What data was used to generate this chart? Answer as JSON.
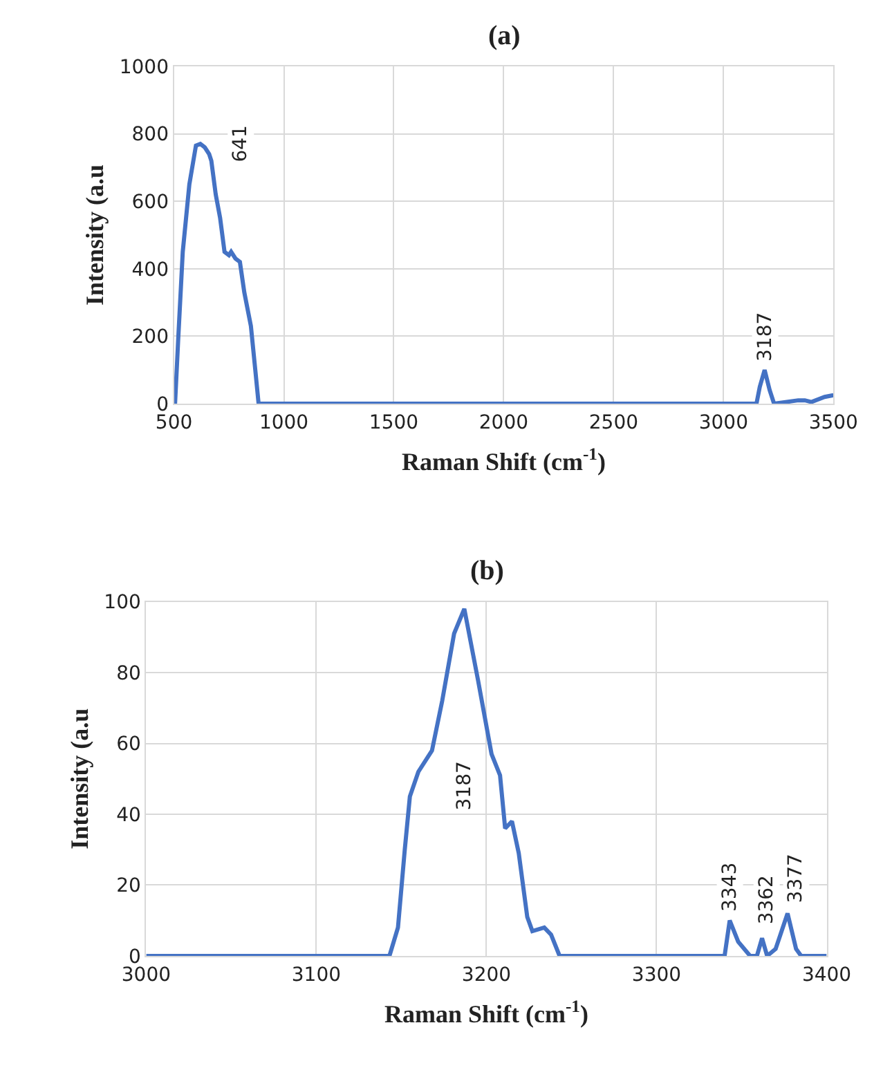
{
  "chart_data": [
    {
      "type": "line",
      "title": "(a)",
      "xlabel": "Raman Shift (cm$^{-1}$)",
      "ylabel": "Intensity (a.u",
      "x": [
        505,
        520,
        540,
        570,
        600,
        620,
        640,
        660,
        670,
        690,
        710,
        730,
        750,
        760,
        780,
        800,
        820,
        850,
        870,
        885,
        3150,
        3165,
        3187,
        3210,
        3230,
        3340,
        3370,
        3400,
        3460,
        3500
      ],
      "series": [
        {
          "color": "#4472c4",
          "values": [
            0,
            200,
            450,
            650,
            765,
            770,
            760,
            740,
            720,
            620,
            550,
            450,
            440,
            450,
            430,
            420,
            330,
            230,
            100,
            0,
            0,
            50,
            100,
            40,
            0,
            10,
            10,
            5,
            20,
            25
          ]
        }
      ],
      "xlim": [
        500,
        3500
      ],
      "xticks": [
        500,
        1000,
        1500,
        2000,
        2500,
        3000,
        3500
      ],
      "ylim": [
        0,
        1000
      ],
      "yticks": [
        0,
        200,
        400,
        600,
        800,
        1000
      ],
      "grid": true,
      "line_style": "solid",
      "annotations": [
        {
          "text": "641",
          "x": 641,
          "y": 770
        },
        {
          "text": "3187",
          "x": 3187,
          "y": 100
        }
      ]
    },
    {
      "type": "line",
      "title": "(b)",
      "xlabel": "Raman Shift (cm$^{-1}$)",
      "ylabel": "Intensity (a.u",
      "x": [
        3000,
        3143,
        3148,
        3152,
        3155,
        3160,
        3168,
        3174,
        3181,
        3187,
        3195,
        3203,
        3208,
        3211,
        3215,
        3219,
        3224,
        3227,
        3234,
        3238,
        3243,
        3340,
        3343,
        3348,
        3355,
        3359,
        3362,
        3365,
        3370,
        3377,
        3382,
        3385,
        3400
      ],
      "series": [
        {
          "color": "#4472c4",
          "values": [
            0,
            0,
            8,
            30,
            45,
            52,
            58,
            72,
            91,
            98,
            78,
            57,
            51,
            36,
            38,
            29,
            11,
            7,
            8,
            6,
            0,
            0,
            10,
            4,
            0,
            0,
            5,
            0,
            2,
            12,
            2,
            0,
            0
          ]
        }
      ],
      "xlim": [
        3000,
        3400
      ],
      "xticks": [
        3000,
        3100,
        3200,
        3300,
        3400
      ],
      "ylim": [
        0,
        100
      ],
      "yticks": [
        0,
        20,
        40,
        60,
        80,
        100
      ],
      "grid": true,
      "line_style": "solid",
      "annotations": [
        {
          "text": "3187",
          "x": 3187,
          "y": 48
        },
        {
          "text": "3343",
          "x": 3343,
          "y": 10
        },
        {
          "text": "3362",
          "x": 3362,
          "y": 5
        },
        {
          "text": "3377",
          "x": 3377,
          "y": 12
        }
      ]
    }
  ]
}
